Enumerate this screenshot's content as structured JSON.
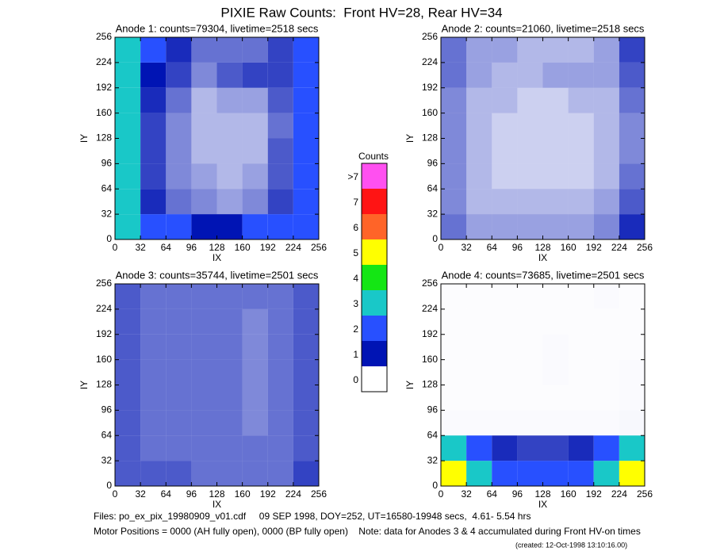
{
  "title": "PIXIE Raw Counts:  Front HV=28, Rear HV=34",
  "colorbar": {
    "title": "Counts",
    "levels": [
      ">7",
      "7",
      "6",
      "5",
      "4",
      "3",
      "2",
      "1",
      "0"
    ],
    "colors": [
      "#ff50f0",
      "#ff1414",
      "#ff6428",
      "#ffff00",
      "#14e614",
      "#19c8c8",
      "#2850ff",
      "#0014b4",
      "#ffffff"
    ]
  },
  "chart_data": [
    {
      "type": "heatmap",
      "title": "Anode 1: counts=79304, livetime=2518 secs",
      "x_label": "IX",
      "y_label": "IY",
      "xlim": [
        0,
        256
      ],
      "ylim": [
        0,
        256
      ],
      "xticks": [
        0,
        32,
        64,
        96,
        128,
        160,
        192,
        224,
        256
      ],
      "yticks": [
        0,
        32,
        64,
        96,
        128,
        160,
        192,
        224,
        256
      ],
      "xbins": [
        0,
        32,
        64,
        96,
        128,
        160,
        192,
        224,
        256
      ],
      "ybins": [
        0,
        32,
        64,
        96,
        128,
        160,
        192,
        224,
        256
      ],
      "z": [
        [
          2.6,
          1.4,
          1.2,
          1.0,
          1.0,
          1.1,
          1.3,
          1.8
        ],
        [
          2.4,
          0.9,
          0.6,
          0.5,
          0.4,
          0.5,
          0.8,
          1.5
        ],
        [
          2.4,
          0.8,
          0.5,
          0.4,
          0.3,
          0.4,
          0.7,
          1.4
        ],
        [
          2.3,
          0.8,
          0.5,
          0.3,
          0.3,
          0.3,
          0.7,
          1.3
        ],
        [
          2.3,
          0.8,
          0.5,
          0.3,
          0.3,
          0.3,
          0.6,
          1.3
        ],
        [
          2.4,
          0.9,
          0.6,
          0.3,
          0.4,
          0.4,
          0.7,
          1.4
        ],
        [
          2.5,
          1.0,
          0.8,
          0.5,
          0.7,
          0.8,
          0.8,
          1.5
        ],
        [
          2.6,
          1.2,
          0.9,
          0.6,
          0.6,
          0.6,
          0.8,
          1.6
        ]
      ]
    },
    {
      "type": "heatmap",
      "title": "Anode 2: counts=21060, livetime=2518 secs",
      "x_label": "IX",
      "y_label": "IY",
      "xlim": [
        0,
        256
      ],
      "ylim": [
        0,
        256
      ],
      "xticks": [
        0,
        32,
        64,
        96,
        128,
        160,
        192,
        224,
        256
      ],
      "yticks": [
        0,
        32,
        64,
        96,
        128,
        160,
        192,
        224,
        256
      ],
      "xbins": [
        0,
        32,
        64,
        96,
        128,
        160,
        192,
        224,
        256
      ],
      "ybins": [
        0,
        32,
        64,
        96,
        128,
        160,
        192,
        224,
        256
      ],
      "z": [
        [
          0.6,
          0.4,
          0.4,
          0.4,
          0.4,
          0.4,
          0.5,
          0.9
        ],
        [
          0.5,
          0.3,
          0.3,
          0.3,
          0.3,
          0.3,
          0.4,
          0.7
        ],
        [
          0.5,
          0.3,
          0.2,
          0.2,
          0.2,
          0.2,
          0.3,
          0.6
        ],
        [
          0.5,
          0.3,
          0.2,
          0.2,
          0.2,
          0.2,
          0.3,
          0.5
        ],
        [
          0.5,
          0.3,
          0.2,
          0.2,
          0.2,
          0.2,
          0.3,
          0.5
        ],
        [
          0.5,
          0.3,
          0.3,
          0.2,
          0.2,
          0.3,
          0.3,
          0.6
        ],
        [
          0.6,
          0.4,
          0.3,
          0.3,
          0.4,
          0.4,
          0.4,
          0.7
        ],
        [
          0.6,
          0.4,
          0.4,
          0.3,
          0.3,
          0.3,
          0.4,
          0.8
        ]
      ]
    },
    {
      "type": "heatmap",
      "title": "Anode 3: counts=35744, livetime=2501 secs",
      "x_label": "IX",
      "y_label": "IY",
      "xlim": [
        0,
        256
      ],
      "ylim": [
        0,
        256
      ],
      "xticks": [
        0,
        32,
        64,
        96,
        128,
        160,
        192,
        224,
        256
      ],
      "yticks": [
        0,
        32,
        64,
        96,
        128,
        160,
        192,
        224,
        256
      ],
      "xbins": [
        0,
        32,
        64,
        96,
        128,
        160,
        192,
        224,
        256
      ],
      "ybins": [
        0,
        32,
        64,
        96,
        128,
        160,
        192,
        224,
        256
      ],
      "z": [
        [
          0.7,
          0.7,
          0.7,
          0.6,
          0.6,
          0.6,
          0.6,
          0.8
        ],
        [
          0.7,
          0.6,
          0.6,
          0.6,
          0.6,
          0.6,
          0.6,
          0.7
        ],
        [
          0.7,
          0.6,
          0.6,
          0.6,
          0.6,
          0.5,
          0.6,
          0.7
        ],
        [
          0.7,
          0.6,
          0.6,
          0.6,
          0.6,
          0.5,
          0.6,
          0.7
        ],
        [
          0.7,
          0.6,
          0.6,
          0.6,
          0.6,
          0.5,
          0.6,
          0.7
        ],
        [
          0.7,
          0.6,
          0.6,
          0.6,
          0.6,
          0.5,
          0.6,
          0.7
        ],
        [
          0.7,
          0.6,
          0.6,
          0.6,
          0.6,
          0.5,
          0.6,
          0.7
        ],
        [
          0.7,
          0.6,
          0.6,
          0.6,
          0.6,
          0.6,
          0.6,
          0.7
        ]
      ]
    },
    {
      "type": "heatmap",
      "title": "Anode 4: counts=73685, livetime=2501 secs",
      "x_label": "IX",
      "y_label": "IY",
      "xlim": [
        0,
        256
      ],
      "ylim": [
        0,
        256
      ],
      "xticks": [
        0,
        32,
        64,
        96,
        128,
        160,
        192,
        224,
        256
      ],
      "yticks": [
        0,
        32,
        64,
        96,
        128,
        160,
        192,
        224,
        256
      ],
      "xbins": [
        0,
        32,
        64,
        96,
        128,
        160,
        192,
        224,
        256
      ],
      "ybins": [
        0,
        32,
        64,
        96,
        128,
        160,
        192,
        224,
        256
      ],
      "z": [
        [
          4.5,
          2.4,
          1.8,
          1.6,
          1.6,
          1.8,
          2.4,
          4.5
        ],
        [
          3.0,
          1.2,
          0.9,
          0.8,
          0.8,
          0.9,
          1.2,
          3.0
        ],
        [
          0.02,
          0.02,
          0.02,
          0.02,
          0.02,
          0.02,
          0.02,
          0.03
        ],
        [
          0.01,
          0.01,
          0.01,
          0.01,
          0.01,
          0.01,
          0.01,
          0.02
        ],
        [
          0.01,
          0.01,
          0.01,
          0.01,
          0.02,
          0.01,
          0.01,
          0.02
        ],
        [
          0.01,
          0.01,
          0.01,
          0.01,
          0.02,
          0.01,
          0.01,
          0.01
        ],
        [
          0.01,
          0.01,
          0.01,
          0.01,
          0.01,
          0.01,
          0.01,
          0.01
        ],
        [
          0.01,
          0.01,
          0.01,
          0.01,
          0.01,
          0.01,
          0.02,
          0.01
        ]
      ]
    }
  ],
  "footer": {
    "files": "Files: po_ex_pix_19980909_v01.cdf     09 SEP 1998, DOY=252, UT=16580-19948 secs,  4.61- 5.54 hrs",
    "motor": "Motor Positions = 0000 (AH fully open), 0000 (BP fully open)    Note: data for Anodes 3 & 4 accumulated during Front HV-on times",
    "created": "(created: 12-Oct-1998 13:10:16.00)"
  }
}
